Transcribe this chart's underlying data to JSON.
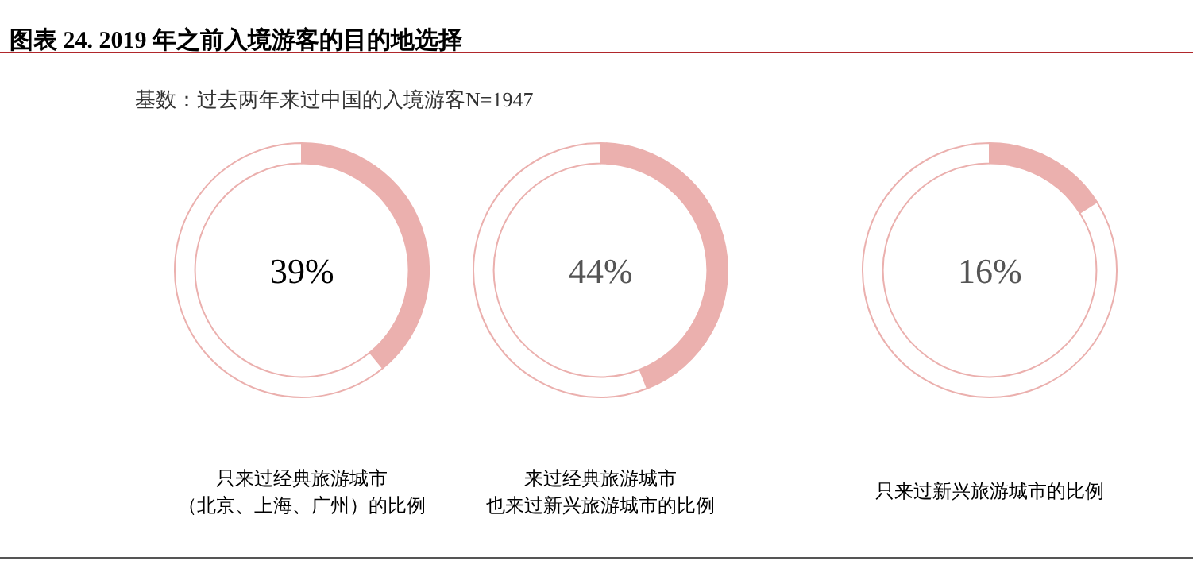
{
  "chart_data": [
    {
      "type": "donut",
      "title": "图表 24. 2019 年之前入境游客的目的地选择",
      "subtitle": "基数：过去两年来过中国的入境游客N=1947",
      "categories": [
        null,
        null
      ],
      "values": [
        39,
        61
      ],
      "colors": [
        "#ebb0ae",
        "#ffffff"
      ],
      "annotations": [
        "39%",
        "只来过经典旅游城市",
        "（北京、上海、广州）的比例"
      ]
    },
    {
      "type": "donut",
      "categories": [
        null,
        null
      ],
      "values": [
        44,
        56
      ],
      "colors": [
        "#ebb0ae",
        "#ffffff"
      ],
      "annotations": [
        "44%",
        "来过经典旅游城市",
        "也来过新兴旅游城市的比例"
      ]
    },
    {
      "type": "donut",
      "categories": [
        null,
        null
      ],
      "values": [
        16,
        84
      ],
      "colors": [
        "#ebb0ae",
        "#ffffff"
      ],
      "annotations": [
        "16%",
        "只来过新兴旅游城市的比例"
      ]
    }
  ]
}
